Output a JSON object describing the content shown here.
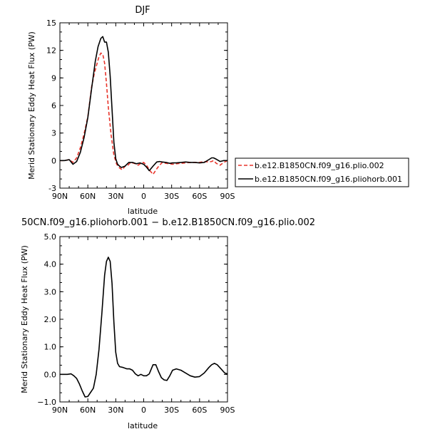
{
  "chart_data": [
    {
      "type": "line",
      "title": "DJF",
      "xlabel": "latitude",
      "ylabel": "Merid Stationary Eddy Heat Flux (PW)",
      "xlim": [
        90,
        -90
      ],
      "ylim": [
        -3,
        15
      ],
      "xticks": [
        90,
        60,
        30,
        0,
        -30,
        -60,
        -90
      ],
      "xtick_labels": [
        "90N",
        "60N",
        "30N",
        "0",
        "30S",
        "60S",
        "90S"
      ],
      "yticks": [
        -3,
        0,
        3,
        6,
        9,
        12,
        15
      ],
      "ytick_labels": [
        "-3",
        "0",
        "3",
        "6",
        "9",
        "12",
        "15"
      ],
      "grid": false,
      "legend_position": "right",
      "series": [
        {
          "name": "b.e12.B1850CN.f09_g16.plio.002",
          "color": "#e8342b",
          "style": "dashed",
          "x": [
            90,
            85,
            80,
            76,
            72,
            68,
            64,
            60,
            56,
            53,
            50,
            48,
            46,
            44,
            42,
            40,
            38,
            35,
            32,
            29,
            26,
            23,
            20,
            17,
            14,
            10,
            6,
            3,
            0,
            -3,
            -6,
            -10,
            -14,
            -17,
            -20,
            -24,
            -28,
            -31,
            -35,
            -40,
            -45,
            -50,
            -55,
            -60,
            -65,
            -70,
            -73,
            -75,
            -78,
            -82,
            -86,
            -90
          ],
          "y": [
            0.0,
            0.0,
            0.1,
            -0.2,
            0.3,
            1.4,
            2.9,
            4.8,
            8.0,
            9.5,
            10.6,
            11.3,
            11.7,
            11.6,
            10.6,
            8.4,
            5.8,
            2.8,
            0.6,
            -0.4,
            -0.8,
            -1.0,
            -0.6,
            -0.5,
            -0.2,
            -0.3,
            -0.5,
            -0.3,
            -0.2,
            -0.5,
            -1.0,
            -1.5,
            -0.9,
            -0.5,
            -0.2,
            -0.3,
            -0.35,
            -0.4,
            -0.35,
            -0.3,
            -0.25,
            -0.2,
            -0.2,
            -0.2,
            -0.1,
            -0.15,
            -0.1,
            0.0,
            -0.3,
            -0.5,
            -0.2,
            0.0
          ]
        },
        {
          "name": "b.e12.B1850CN.f09_g16.pliohorb.001",
          "color": "#000000",
          "style": "solid",
          "x": [
            90,
            85,
            80,
            76,
            72,
            68,
            64,
            60,
            56,
            52,
            49,
            46,
            44,
            42,
            40,
            38,
            36,
            34,
            32,
            30,
            28,
            26,
            24,
            20,
            16,
            12,
            8,
            4,
            0,
            -3,
            -6,
            -10,
            -14,
            -17,
            -20,
            -24,
            -28,
            -31,
            -35,
            -40,
            -45,
            -50,
            -55,
            -60,
            -65,
            -70,
            -73,
            -75,
            -78,
            -82,
            -86,
            -90
          ],
          "y": [
            0.0,
            0.0,
            0.1,
            -0.4,
            -0.1,
            0.9,
            2.5,
            4.7,
            7.8,
            10.8,
            12.4,
            13.3,
            13.5,
            12.9,
            12.9,
            11.8,
            9.2,
            5.6,
            2.0,
            0.2,
            -0.4,
            -0.6,
            -0.75,
            -0.6,
            -0.2,
            -0.2,
            -0.35,
            -0.25,
            -0.4,
            -0.7,
            -1.1,
            -0.6,
            -0.15,
            -0.1,
            -0.15,
            -0.2,
            -0.3,
            -0.25,
            -0.25,
            -0.2,
            -0.15,
            -0.2,
            -0.2,
            -0.25,
            -0.2,
            0.1,
            0.3,
            0.3,
            0.15,
            -0.1,
            0.0,
            0.0
          ]
        }
      ]
    },
    {
      "type": "line",
      "title": "50CN.f09_g16.pliohorb.001 − b.e12.B1850CN.f09_g16.plio.002",
      "xlabel": "latitude",
      "ylabel": "Merid Stationary Eddy Heat Flux (PW)",
      "xlim": [
        90,
        -90
      ],
      "ylim": [
        -1.0,
        5.0
      ],
      "xticks": [
        90,
        60,
        30,
        0,
        -30,
        -60,
        -90
      ],
      "xtick_labels": [
        "90N",
        "60N",
        "30N",
        "0",
        "30S",
        "60S",
        "90S"
      ],
      "yticks": [
        -1.0,
        0.0,
        1.0,
        2.0,
        3.0,
        4.0,
        5.0
      ],
      "ytick_labels": [
        "−1.0",
        "0.0",
        "1.0",
        "2.0",
        "3.0",
        "4.0",
        "5.0"
      ],
      "grid": false,
      "series": [
        {
          "color": "#000000",
          "style": "solid",
          "x": [
            90,
            86,
            82,
            78,
            75,
            72,
            69,
            66,
            63,
            60,
            57,
            54,
            51,
            48,
            45,
            42,
            40,
            38,
            36,
            34,
            32,
            30,
            28,
            26,
            22,
            18,
            15,
            12,
            9,
            6,
            3,
            0,
            -3,
            -6,
            -10,
            -13,
            -16,
            -19,
            -22,
            -25,
            -28,
            -31,
            -35,
            -40,
            -45,
            -50,
            -55,
            -60,
            -65,
            -70,
            -73,
            -76,
            -79,
            -83,
            -87,
            -90
          ],
          "y": [
            0.0,
            0.0,
            0.0,
            0.02,
            -0.05,
            -0.15,
            -0.35,
            -0.6,
            -0.82,
            -0.8,
            -0.65,
            -0.5,
            0.0,
            0.9,
            2.2,
            3.6,
            4.1,
            4.25,
            4.1,
            3.3,
            1.9,
            0.8,
            0.4,
            0.28,
            0.25,
            0.2,
            0.2,
            0.15,
            0.02,
            -0.05,
            0.0,
            -0.05,
            -0.05,
            0.02,
            0.35,
            0.35,
            0.1,
            -0.12,
            -0.2,
            -0.22,
            -0.05,
            0.15,
            0.2,
            0.15,
            0.05,
            -0.05,
            -0.1,
            -0.08,
            0.05,
            0.25,
            0.35,
            0.4,
            0.35,
            0.2,
            0.05,
            0.02
          ]
        }
      ]
    }
  ]
}
